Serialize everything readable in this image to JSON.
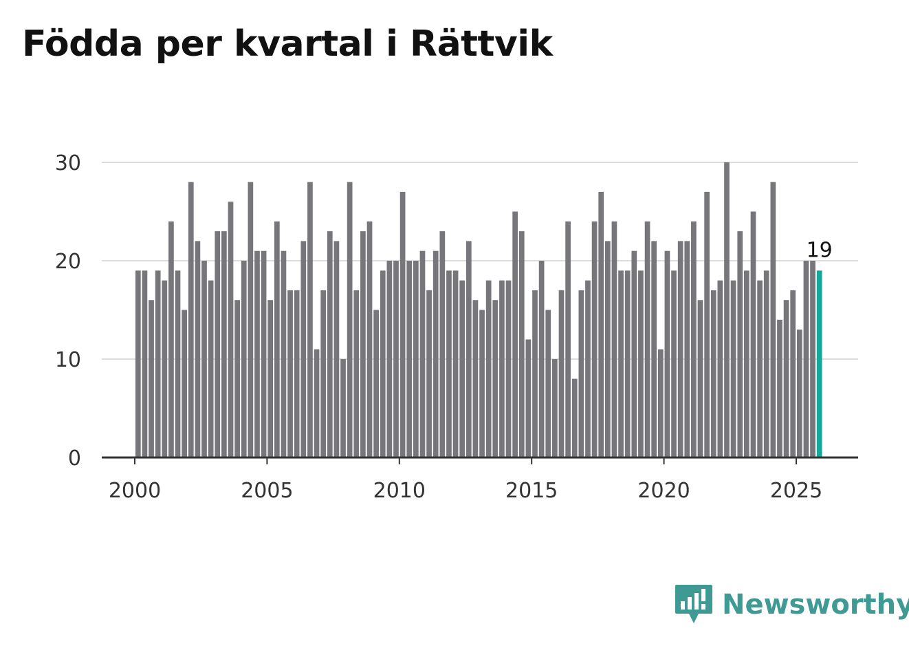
{
  "title": "Födda per kvartal i Rättvik",
  "brand": {
    "name": "Newsworthy",
    "icon": "bar-chart-speech-bubble-icon",
    "color": "#3e9a92"
  },
  "colors": {
    "bar": "#77767a",
    "highlight": "#16a89b",
    "grid": "#dcdcdc",
    "axis": "#333333"
  },
  "chart_data": {
    "type": "bar",
    "title": "Födda per kvartal i Rättvik",
    "xlabel": "",
    "ylabel": "",
    "ylim": [
      0,
      30
    ],
    "yticks": [
      0,
      10,
      20,
      30
    ],
    "xticks": [
      2000,
      2005,
      2010,
      2015,
      2020,
      2025
    ],
    "grid": true,
    "legend": "none",
    "start": {
      "year": 2000,
      "quarter": 1
    },
    "values": [
      19,
      19,
      16,
      19,
      18,
      24,
      19,
      15,
      28,
      22,
      20,
      18,
      23,
      23,
      26,
      16,
      20,
      28,
      21,
      21,
      16,
      24,
      21,
      17,
      17,
      22,
      28,
      11,
      17,
      23,
      22,
      10,
      28,
      17,
      23,
      24,
      15,
      19,
      20,
      20,
      27,
      20,
      20,
      21,
      17,
      21,
      23,
      19,
      19,
      18,
      22,
      16,
      15,
      18,
      16,
      18,
      18,
      25,
      23,
      12,
      17,
      20,
      15,
      10,
      17,
      24,
      8,
      17,
      18,
      24,
      27,
      22,
      24,
      19,
      19,
      21,
      19,
      24,
      22,
      11,
      21,
      19,
      22,
      22,
      24,
      16,
      27,
      17,
      18,
      30,
      18,
      23,
      19,
      25,
      18,
      19,
      28,
      14,
      16,
      17,
      13,
      20,
      20,
      19
    ],
    "highlight_last": true,
    "last_value_label": "19"
  }
}
